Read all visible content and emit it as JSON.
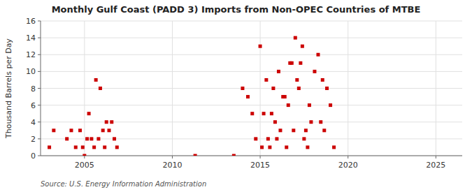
{
  "chart_data": {
    "type": "scatter",
    "title": "Monthly Gulf Coast (PADD 3) Imports from Non-OPEC Countries of MTBE",
    "ylabel": "Thousand Barrels per Day",
    "source": "Source: U.S. Energy Information Administration",
    "color": "#cc0000",
    "marker": "square",
    "grid": true,
    "xlim": [
      2002.5,
      2026.5
    ],
    "ylim": [
      0,
      16
    ],
    "xticks": [
      2005,
      2010,
      2015,
      2020,
      2025
    ],
    "yticks": [
      0,
      2,
      4,
      6,
      8,
      10,
      12,
      14,
      16
    ],
    "x": [
      2003.0,
      2003.25,
      2004.0,
      2004.25,
      2004.5,
      2004.75,
      2004.9,
      2005.0,
      2005.15,
      2005.25,
      2005.4,
      2005.55,
      2005.65,
      2005.8,
      2005.9,
      2006.05,
      2006.15,
      2006.25,
      2006.4,
      2006.55,
      2006.7,
      2006.85,
      2011.3,
      2013.5,
      2014.0,
      2014.3,
      2014.55,
      2014.75,
      2015.0,
      2015.1,
      2015.2,
      2015.35,
      2015.45,
      2015.55,
      2015.65,
      2015.75,
      2015.85,
      2015.95,
      2016.05,
      2016.15,
      2016.3,
      2016.4,
      2016.5,
      2016.6,
      2016.7,
      2016.8,
      2016.9,
      2017.0,
      2017.1,
      2017.2,
      2017.3,
      2017.4,
      2017.5,
      2017.6,
      2017.7,
      2017.8,
      2017.9,
      2018.1,
      2018.3,
      2018.45,
      2018.55,
      2018.65,
      2018.8,
      2019.0,
      2019.2
    ],
    "values": [
      1,
      3,
      2,
      3,
      1,
      3,
      1,
      0,
      2,
      5,
      2,
      1,
      9,
      2,
      8,
      3,
      1,
      4,
      3,
      4,
      2,
      1,
      0,
      0,
      8,
      7,
      5,
      2,
      13,
      1,
      5,
      9,
      2,
      1,
      5,
      8,
      4,
      2,
      10,
      3,
      7,
      7,
      1,
      6,
      11,
      11,
      3,
      14,
      9,
      8,
      11,
      13,
      2,
      3,
      1,
      6,
      4,
      10,
      12,
      4,
      9,
      3,
      8,
      6,
      1
    ]
  }
}
